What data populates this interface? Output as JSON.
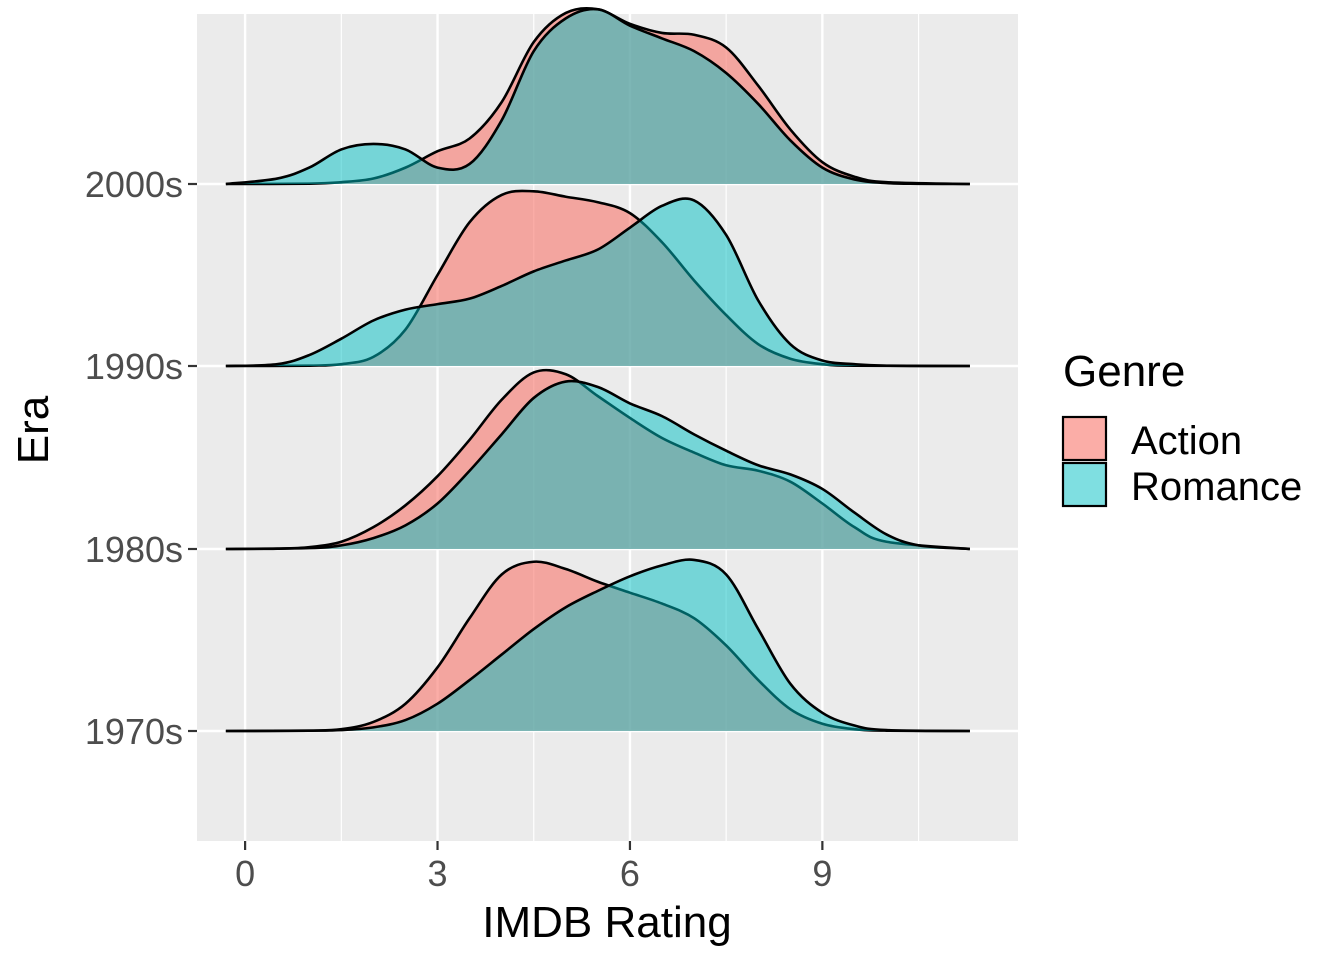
{
  "chart_data": {
    "type": "ridgeline-density",
    "xlabel": "IMDB Rating",
    "ylabel": "Era",
    "x_ticks": [
      0,
      3,
      6,
      9
    ],
    "xlim": [
      -0.75,
      12.05
    ],
    "categories": [
      "1970s",
      "1980s",
      "1990s",
      "2000s"
    ],
    "grid": true,
    "legend": {
      "title": "Genre",
      "placement": "right"
    },
    "series": [
      {
        "name": "Action",
        "color": "#F8766D",
        "fill_opacity": 0.6,
        "curves": {
          "1970s": {
            "x": [
              -0.3,
              1.0,
              1.5,
              2.0,
              2.5,
              3.0,
              3.5,
              4.0,
              4.5,
              5.0,
              5.5,
              6.0,
              6.5,
              7.0,
              7.5,
              8.0,
              8.5,
              9.0,
              9.5,
              10.0,
              11.3
            ],
            "y": [
              0,
              0.002,
              0.01,
              0.05,
              0.15,
              0.35,
              0.62,
              0.86,
              0.93,
              0.89,
              0.82,
              0.76,
              0.7,
              0.62,
              0.47,
              0.28,
              0.12,
              0.04,
              0.01,
              0.002,
              0
            ]
          },
          "1980s": {
            "x": [
              -0.3,
              0.5,
              1.0,
              1.5,
              2.0,
              2.5,
              3.0,
              3.5,
              4.0,
              4.5,
              5.0,
              5.5,
              6.0,
              6.5,
              7.0,
              7.5,
              8.0,
              8.5,
              9.0,
              9.5,
              10.0,
              11.3
            ],
            "y": [
              0,
              0.002,
              0.01,
              0.04,
              0.12,
              0.24,
              0.4,
              0.6,
              0.82,
              0.97,
              0.96,
              0.84,
              0.72,
              0.61,
              0.53,
              0.46,
              0.43,
              0.37,
              0.25,
              0.12,
              0.04,
              0
            ]
          },
          "1990s": {
            "x": [
              -0.3,
              1.0,
              1.5,
              2.0,
              2.5,
              3.0,
              3.5,
              4.0,
              4.5,
              5.0,
              5.5,
              6.0,
              6.5,
              7.0,
              7.5,
              8.0,
              8.5,
              9.0,
              9.5,
              11.3
            ],
            "y": [
              0,
              0.002,
              0.01,
              0.05,
              0.2,
              0.5,
              0.79,
              0.94,
              0.96,
              0.93,
              0.9,
              0.84,
              0.68,
              0.47,
              0.28,
              0.12,
              0.04,
              0.01,
              0.002,
              0
            ]
          },
          "2000s": {
            "x": [
              -0.3,
              1.0,
              1.5,
              2.0,
              2.5,
              3.0,
              3.5,
              4.0,
              4.5,
              5.0,
              5.5,
              6.0,
              6.5,
              7.0,
              7.5,
              8.0,
              8.5,
              9.0,
              9.5,
              10.0,
              11.3
            ],
            "y": [
              0,
              0.002,
              0.01,
              0.03,
              0.09,
              0.18,
              0.25,
              0.45,
              0.78,
              0.94,
              0.96,
              0.88,
              0.83,
              0.82,
              0.75,
              0.54,
              0.3,
              0.12,
              0.04,
              0.01,
              0
            ]
          }
        }
      },
      {
        "name": "Romance",
        "color": "#00BFC4",
        "fill_opacity": 0.5,
        "curves": {
          "1970s": {
            "x": [
              -0.3,
              1.0,
              1.5,
              2.0,
              2.5,
              3.0,
              3.5,
              4.0,
              4.5,
              5.0,
              5.5,
              6.0,
              6.5,
              7.0,
              7.5,
              8.0,
              8.5,
              9.0,
              9.5,
              10.0,
              11.3
            ],
            "y": [
              0,
              0.002,
              0.005,
              0.02,
              0.06,
              0.15,
              0.28,
              0.42,
              0.56,
              0.68,
              0.77,
              0.85,
              0.91,
              0.94,
              0.86,
              0.56,
              0.26,
              0.1,
              0.03,
              0.005,
              0
            ]
          },
          "1980s": {
            "x": [
              -0.3,
              1.0,
              1.5,
              2.0,
              2.5,
              3.0,
              3.5,
              4.0,
              4.5,
              5.0,
              5.5,
              6.0,
              6.5,
              7.0,
              7.5,
              8.0,
              8.5,
              9.0,
              9.5,
              10.0,
              10.5,
              11.3
            ],
            "y": [
              0,
              0.005,
              0.02,
              0.06,
              0.13,
              0.25,
              0.43,
              0.63,
              0.83,
              0.92,
              0.89,
              0.8,
              0.73,
              0.63,
              0.54,
              0.46,
              0.41,
              0.33,
              0.2,
              0.08,
              0.02,
              0
            ]
          },
          "1990s": {
            "x": [
              -0.3,
              0.5,
              1.0,
              1.5,
              2.0,
              2.5,
              3.0,
              3.5,
              4.0,
              4.5,
              5.0,
              5.5,
              6.0,
              6.5,
              7.0,
              7.5,
              8.0,
              8.5,
              9.0,
              9.5,
              10.0,
              11.3
            ],
            "y": [
              0,
              0.01,
              0.06,
              0.15,
              0.25,
              0.31,
              0.34,
              0.37,
              0.44,
              0.52,
              0.58,
              0.64,
              0.76,
              0.88,
              0.91,
              0.72,
              0.36,
              0.12,
              0.03,
              0.01,
              0.002,
              0
            ]
          },
          "2000s": {
            "x": [
              -0.3,
              0.5,
              1.0,
              1.5,
              2.0,
              2.5,
              3.0,
              3.5,
              4.0,
              4.5,
              5.0,
              5.5,
              6.0,
              6.5,
              7.0,
              7.5,
              8.0,
              8.5,
              9.0,
              9.5,
              10.0,
              10.5,
              11.3
            ],
            "y": [
              0,
              0.03,
              0.09,
              0.19,
              0.22,
              0.19,
              0.09,
              0.11,
              0.35,
              0.73,
              0.91,
              0.96,
              0.87,
              0.8,
              0.73,
              0.61,
              0.44,
              0.24,
              0.09,
              0.025,
              0.005,
              0.001,
              0
            ]
          }
        }
      }
    ]
  }
}
